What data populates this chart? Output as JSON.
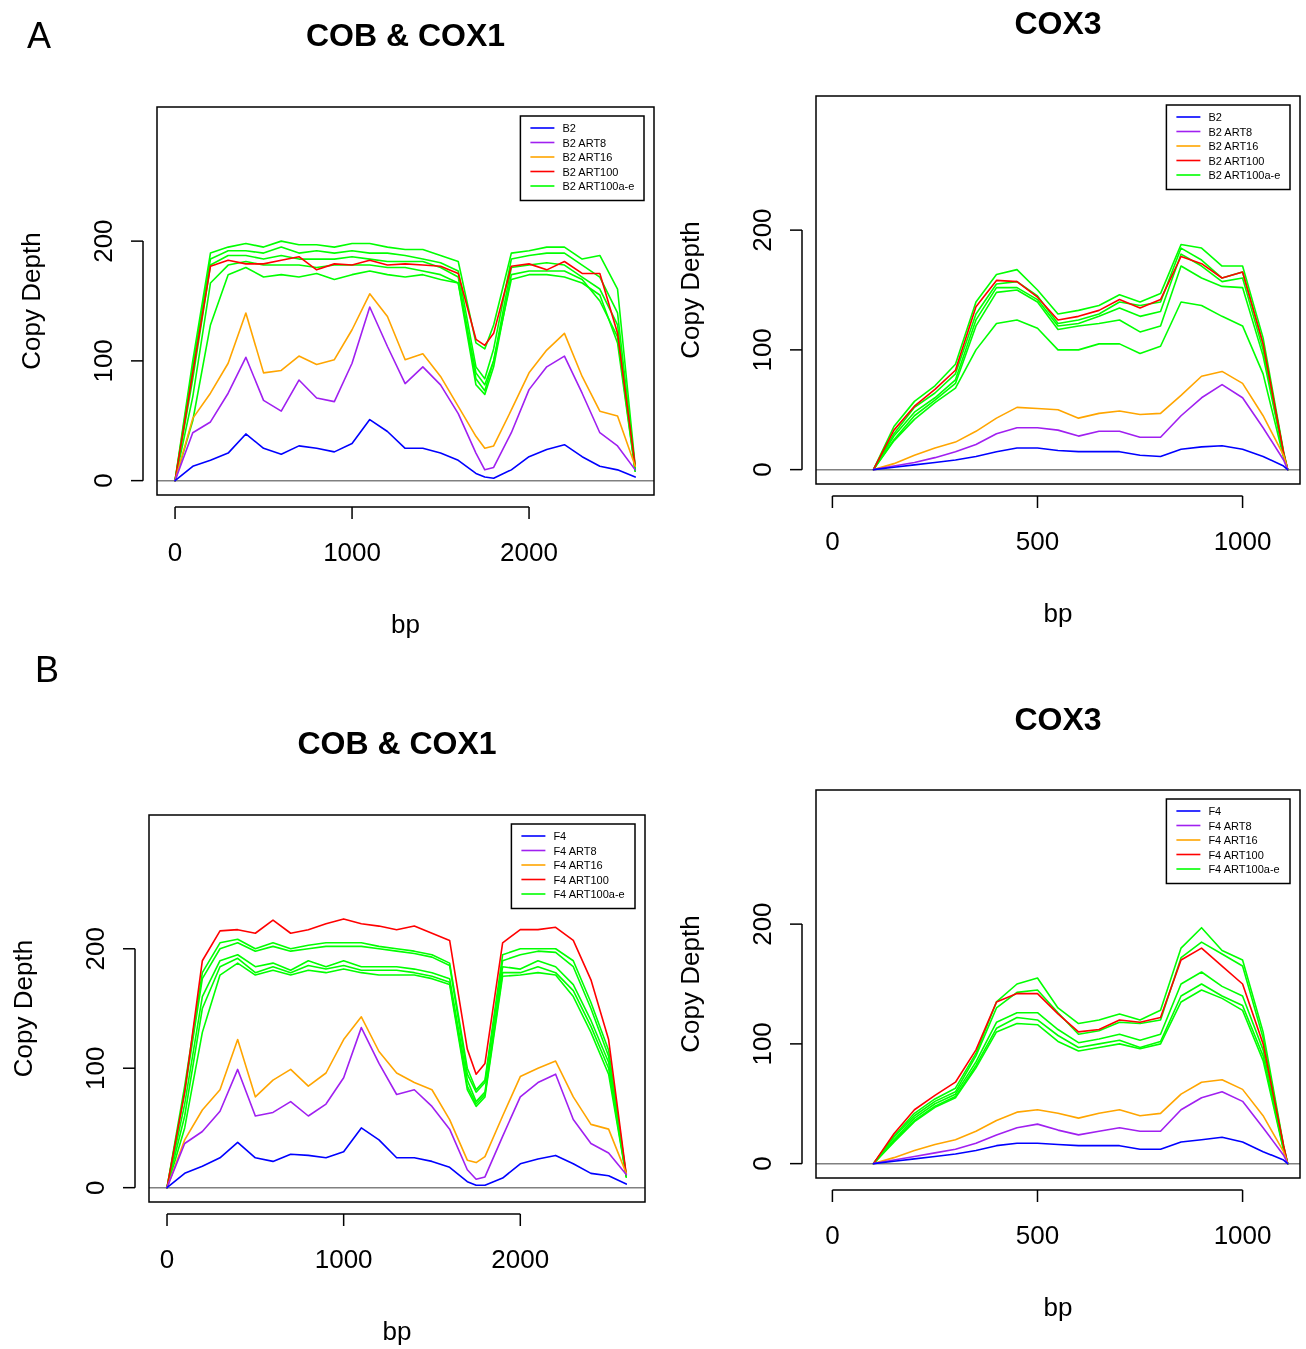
{
  "chart_data": [
    {
      "type": "line",
      "title": "COB & COX1",
      "xlabel": "bp",
      "ylabel": "Copy Depth",
      "annotations": [
        "A"
      ],
      "legend": "top right",
      "xlim": [
        -102,
        2706
      ],
      "ylim": [
        -12,
        312
      ],
      "xticks": [
        0,
        1000,
        2000
      ],
      "yticks": [
        0,
        100,
        200
      ],
      "ref_lines": [
        {
          "axis": "y",
          "value": 0,
          "color": "#808080"
        }
      ],
      "x": [
        0,
        100,
        200,
        300,
        400,
        500,
        600,
        700,
        800,
        900,
        1000,
        1100,
        1200,
        1300,
        1400,
        1500,
        1600,
        1700,
        1750,
        1800,
        1900,
        2000,
        2100,
        2200,
        2300,
        2400,
        2500,
        2600
      ],
      "series": [
        {
          "name": "B2",
          "color": "#0000ff",
          "values": [
            0,
            12,
            17,
            23,
            39,
            27,
            22,
            29,
            27,
            24,
            31,
            51,
            41,
            27,
            27,
            23,
            17,
            6,
            3,
            2,
            9,
            20,
            26,
            30,
            20,
            12,
            9,
            3
          ]
        },
        {
          "name": "B2 ART8",
          "color": "#a020f0",
          "values": [
            0,
            40,
            49,
            73,
            103,
            67,
            58,
            84,
            69,
            66,
            98,
            145,
            112,
            81,
            95,
            80,
            56,
            23,
            9,
            11,
            40,
            76,
            95,
            104,
            73,
            40,
            29,
            9
          ]
        },
        {
          "name": "B2 ART16",
          "color": "#ffa500",
          "values": [
            0,
            52,
            73,
            98,
            140,
            90,
            92,
            104,
            97,
            101,
            126,
            156,
            137,
            101,
            106,
            87,
            62,
            37,
            27,
            29,
            59,
            90,
            109,
            123,
            87,
            58,
            54,
            12
          ]
        },
        {
          "name": "B2 ART100",
          "color": "#ff0000",
          "values": [
            0,
            90,
            179,
            184,
            181,
            181,
            184,
            187,
            176,
            181,
            180,
            184,
            180,
            181,
            180,
            179,
            173,
            118,
            113,
            123,
            179,
            181,
            176,
            183,
            173,
            173,
            123,
            12
          ]
        },
        {
          "name": "B2 ART100a-e",
          "color": "#00ff00",
          "values": [
            0,
            100,
            190,
            195,
            198,
            195,
            200,
            197,
            197,
            195,
            198,
            198,
            195,
            193,
            193,
            188,
            183,
            115,
            110,
            130,
            190,
            192,
            195,
            195,
            185,
            188,
            160,
            12
          ]
        },
        {
          "color": "#00ff00",
          "values": [
            0,
            95,
            185,
            192,
            192,
            190,
            195,
            190,
            192,
            190,
            192,
            190,
            190,
            188,
            185,
            182,
            175,
            95,
            85,
            110,
            185,
            188,
            190,
            190,
            180,
            170,
            140,
            10
          ]
        },
        {
          "color": "#00ff00",
          "values": [
            0,
            85,
            180,
            188,
            188,
            185,
            188,
            185,
            185,
            185,
            187,
            185,
            183,
            183,
            183,
            178,
            170,
            85,
            75,
            100,
            178,
            180,
            182,
            180,
            170,
            160,
            130,
            8
          ]
        },
        {
          "color": "#00ff00",
          "values": [
            0,
            70,
            165,
            180,
            183,
            180,
            180,
            180,
            178,
            180,
            180,
            180,
            178,
            178,
            175,
            172,
            165,
            80,
            72,
            95,
            172,
            175,
            175,
            175,
            168,
            150,
            120,
            8
          ]
        },
        {
          "color": "#00ff00",
          "values": [
            0,
            50,
            130,
            172,
            178,
            170,
            172,
            170,
            173,
            168,
            172,
            175,
            172,
            170,
            172,
            168,
            165,
            90,
            80,
            100,
            168,
            172,
            172,
            170,
            165,
            155,
            115,
            8
          ]
        }
      ]
    },
    {
      "type": "line",
      "title": "COX3",
      "xlabel": "bp",
      "ylabel": "Copy Depth",
      "legend": "top right",
      "xlim": [
        -40,
        1140
      ],
      "ylim": [
        -12,
        312
      ],
      "xticks": [
        0,
        500,
        1000
      ],
      "yticks": [
        0,
        100,
        200
      ],
      "ref_lines": [
        {
          "axis": "y",
          "value": 0,
          "color": "#808080"
        }
      ],
      "x": [
        100,
        150,
        200,
        250,
        300,
        350,
        400,
        450,
        500,
        550,
        600,
        650,
        700,
        750,
        800,
        850,
        900,
        950,
        1000,
        1050,
        1100,
        1110
      ],
      "series": [
        {
          "name": "B2",
          "color": "#0000ff",
          "values": [
            0,
            2,
            4,
            6,
            8,
            11,
            15,
            18,
            18,
            16,
            15,
            15,
            15,
            12,
            11,
            17,
            19,
            20,
            17,
            11,
            3,
            0
          ]
        },
        {
          "name": "B2 ART8",
          "color": "#a020f0",
          "values": [
            0,
            3,
            6,
            10,
            15,
            21,
            30,
            35,
            35,
            33,
            28,
            32,
            32,
            27,
            27,
            45,
            60,
            71,
            60,
            35,
            8,
            0
          ]
        },
        {
          "name": "B2 ART16",
          "color": "#ffa500",
          "values": [
            0,
            5,
            12,
            18,
            23,
            32,
            43,
            52,
            51,
            50,
            43,
            47,
            49,
            46,
            47,
            62,
            78,
            82,
            72,
            45,
            12,
            0
          ]
        },
        {
          "name": "B2 ART100",
          "color": "#ff0000",
          "values": [
            0,
            33,
            53,
            67,
            83,
            136,
            158,
            157,
            144,
            125,
            128,
            133,
            142,
            135,
            142,
            178,
            172,
            160,
            165,
            105,
            14,
            0
          ]
        },
        {
          "name": "B2 ART100a-e",
          "color": "#00ff00",
          "values": [
            0,
            36,
            57,
            70,
            88,
            140,
            163,
            167,
            150,
            130,
            133,
            137,
            146,
            140,
            147,
            188,
            185,
            170,
            170,
            110,
            15,
            0
          ]
        },
        {
          "color": "#00ff00",
          "values": [
            0,
            30,
            52,
            64,
            80,
            130,
            155,
            157,
            145,
            122,
            125,
            130,
            140,
            137,
            140,
            185,
            175,
            160,
            165,
            105,
            14,
            0
          ]
        },
        {
          "color": "#00ff00",
          "values": [
            0,
            28,
            48,
            60,
            75,
            125,
            152,
            152,
            142,
            120,
            122,
            128,
            135,
            128,
            132,
            180,
            170,
            157,
            160,
            100,
            13,
            0
          ]
        },
        {
          "color": "#00ff00",
          "values": [
            0,
            25,
            45,
            58,
            72,
            120,
            148,
            150,
            140,
            117,
            120,
            122,
            125,
            115,
            120,
            170,
            160,
            153,
            152,
            95,
            12,
            0
          ]
        },
        {
          "color": "#00ff00",
          "values": [
            0,
            24,
            42,
            56,
            68,
            100,
            122,
            125,
            118,
            100,
            100,
            105,
            105,
            97,
            103,
            140,
            137,
            128,
            120,
            80,
            10,
            0
          ]
        }
      ]
    },
    {
      "type": "line",
      "title": "COB & COX1",
      "xlabel": "bp",
      "ylabel": "Copy Depth",
      "annotations": [
        "B"
      ],
      "legend": "top right",
      "xlim": [
        -102,
        2706
      ],
      "ylim": [
        -12,
        312
      ],
      "xticks": [
        0,
        1000,
        2000
      ],
      "yticks": [
        0,
        100,
        200
      ],
      "ref_lines": [
        {
          "axis": "y",
          "value": 0,
          "color": "#808080"
        }
      ],
      "x": [
        0,
        100,
        200,
        300,
        400,
        500,
        600,
        700,
        800,
        900,
        1000,
        1100,
        1200,
        1300,
        1400,
        1500,
        1600,
        1700,
        1750,
        1800,
        1900,
        2000,
        2100,
        2200,
        2300,
        2400,
        2500,
        2600
      ],
      "series": [
        {
          "name": "F4",
          "color": "#0000ff",
          "values": [
            0,
            12,
            18,
            25,
            38,
            25,
            22,
            28,
            27,
            25,
            30,
            50,
            40,
            25,
            25,
            22,
            17,
            5,
            2,
            2,
            8,
            20,
            24,
            27,
            20,
            12,
            10,
            3
          ]
        },
        {
          "name": "F4 ART8",
          "color": "#a020f0",
          "values": [
            0,
            37,
            47,
            64,
            99,
            60,
            63,
            72,
            60,
            70,
            92,
            134,
            104,
            78,
            82,
            68,
            49,
            15,
            7,
            9,
            43,
            76,
            88,
            95,
            57,
            37,
            29,
            11
          ]
        },
        {
          "name": "F4 ART16",
          "color": "#ffa500",
          "values": [
            0,
            40,
            65,
            82,
            124,
            76,
            90,
            99,
            85,
            96,
            124,
            143,
            114,
            96,
            88,
            82,
            57,
            23,
            21,
            26,
            60,
            93,
            100,
            106,
            76,
            53,
            49,
            12
          ]
        },
        {
          "name": "F4 ART100",
          "color": "#ff0000",
          "values": [
            0,
            80,
            190,
            215,
            216,
            213,
            224,
            213,
            216,
            221,
            225,
            221,
            219,
            216,
            219,
            213,
            207,
            116,
            95,
            104,
            205,
            216,
            216,
            218,
            207,
            174,
            124,
            11
          ]
        },
        {
          "name": "F4 ART100a-e",
          "color": "#00ff00",
          "values": [
            0,
            85,
            180,
            205,
            208,
            200,
            205,
            200,
            203,
            205,
            205,
            205,
            202,
            200,
            198,
            195,
            188,
            100,
            82,
            90,
            195,
            200,
            200,
            200,
            190,
            155,
            115,
            10
          ]
        },
        {
          "color": "#00ff00",
          "values": [
            0,
            80,
            175,
            200,
            205,
            198,
            202,
            198,
            200,
            202,
            202,
            202,
            200,
            198,
            196,
            193,
            186,
            95,
            80,
            88,
            190,
            195,
            198,
            197,
            185,
            150,
            110,
            10
          ]
        },
        {
          "color": "#00ff00",
          "values": [
            0,
            70,
            160,
            190,
            195,
            185,
            188,
            182,
            190,
            185,
            190,
            185,
            185,
            185,
            183,
            180,
            175,
            90,
            72,
            80,
            185,
            183,
            190,
            185,
            170,
            140,
            105,
            9
          ]
        },
        {
          "color": "#00ff00",
          "values": [
            0,
            60,
            150,
            185,
            192,
            180,
            185,
            180,
            186,
            183,
            186,
            182,
            182,
            182,
            180,
            177,
            172,
            85,
            70,
            78,
            180,
            180,
            185,
            180,
            165,
            135,
            100,
            9
          ]
        },
        {
          "color": "#00ff00",
          "values": [
            0,
            50,
            130,
            178,
            188,
            178,
            182,
            178,
            182,
            180,
            183,
            180,
            178,
            178,
            178,
            175,
            170,
            82,
            68,
            76,
            177,
            178,
            180,
            178,
            160,
            130,
            95,
            9
          ]
        }
      ]
    },
    {
      "type": "line",
      "title": "COX3",
      "xlabel": "bp",
      "ylabel": "Copy Depth",
      "legend": "top right",
      "xlim": [
        -40,
        1140
      ],
      "ylim": [
        -12,
        312
      ],
      "xticks": [
        0,
        500,
        1000
      ],
      "yticks": [
        0,
        100,
        200
      ],
      "ref_lines": [
        {
          "axis": "y",
          "value": 0,
          "color": "#808080"
        }
      ],
      "x": [
        100,
        150,
        200,
        250,
        300,
        350,
        400,
        450,
        500,
        550,
        600,
        650,
        700,
        750,
        800,
        850,
        900,
        950,
        1000,
        1050,
        1100,
        1110
      ],
      "series": [
        {
          "name": "F4",
          "color": "#0000ff",
          "values": [
            0,
            2,
            4,
            6,
            8,
            11,
            15,
            17,
            17,
            16,
            15,
            15,
            15,
            12,
            12,
            18,
            20,
            22,
            18,
            10,
            3,
            0
          ]
        },
        {
          "name": "F4 ART8",
          "color": "#a020f0",
          "values": [
            0,
            3,
            6,
            9,
            12,
            17,
            24,
            30,
            33,
            28,
            24,
            27,
            30,
            27,
            27,
            45,
            55,
            60,
            52,
            30,
            7,
            0
          ]
        },
        {
          "name": "F4 ART16",
          "color": "#ffa500",
          "values": [
            0,
            5,
            11,
            16,
            20,
            27,
            36,
            43,
            45,
            42,
            38,
            42,
            45,
            40,
            42,
            58,
            68,
            70,
            62,
            40,
            10,
            0
          ]
        },
        {
          "name": "F4 ART100",
          "color": "#ff0000",
          "values": [
            0,
            25,
            45,
            57,
            68,
            95,
            135,
            142,
            142,
            125,
            110,
            112,
            120,
            118,
            122,
            170,
            180,
            165,
            150,
            100,
            15,
            0
          ]
        },
        {
          "name": "F4 ART100a-e",
          "color": "#00ff00",
          "values": [
            0,
            23,
            42,
            54,
            63,
            92,
            135,
            150,
            155,
            130,
            117,
            120,
            125,
            120,
            128,
            180,
            197,
            178,
            170,
            110,
            15,
            0
          ]
        },
        {
          "color": "#00ff00",
          "values": [
            0,
            22,
            40,
            52,
            60,
            90,
            130,
            143,
            145,
            126,
            108,
            111,
            118,
            117,
            120,
            172,
            185,
            175,
            165,
            105,
            14,
            0
          ]
        },
        {
          "color": "#00ff00",
          "values": [
            0,
            20,
            38,
            50,
            58,
            85,
            118,
            126,
            126,
            112,
            101,
            104,
            108,
            103,
            108,
            150,
            160,
            148,
            140,
            95,
            13,
            0
          ]
        },
        {
          "color": "#00ff00",
          "values": [
            0,
            19,
            36,
            48,
            56,
            82,
            113,
            122,
            120,
            107,
            97,
            100,
            103,
            97,
            102,
            140,
            150,
            140,
            132,
            90,
            12,
            0
          ]
        },
        {
          "color": "#00ff00",
          "values": [
            0,
            18,
            35,
            47,
            55,
            80,
            110,
            117,
            116,
            102,
            94,
            97,
            100,
            96,
            100,
            135,
            145,
            138,
            128,
            86,
            11,
            0
          ]
        }
      ]
    }
  ]
}
